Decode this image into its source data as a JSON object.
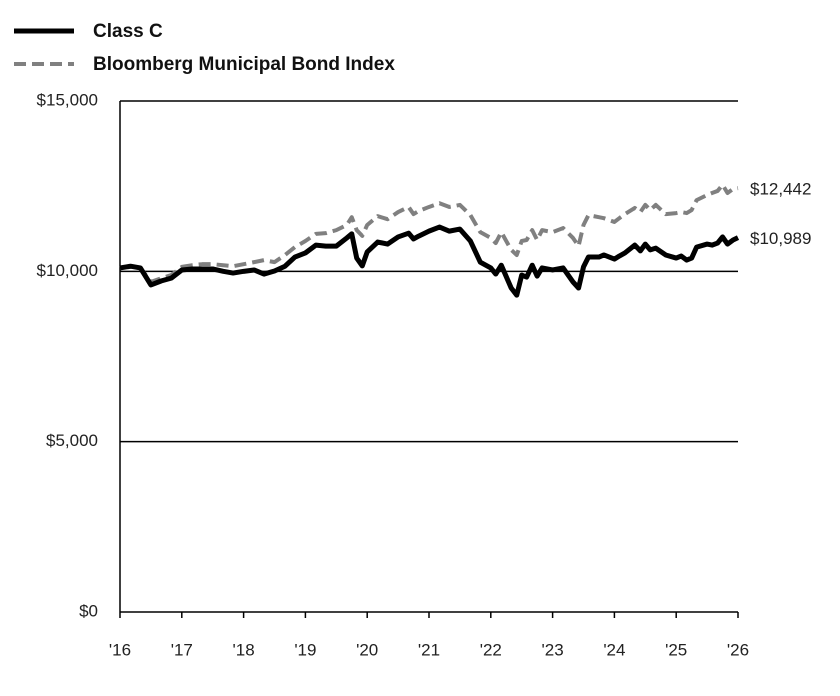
{
  "chart_data": {
    "type": "line",
    "x": [
      2016,
      2016.17,
      2016.33,
      2016.5,
      2016.67,
      2016.83,
      2017,
      2017.17,
      2017.33,
      2017.5,
      2017.67,
      2017.83,
      2018,
      2018.17,
      2018.33,
      2018.5,
      2018.67,
      2018.83,
      2019,
      2019.17,
      2019.33,
      2019.5,
      2019.67,
      2019.75,
      2019.83,
      2019.92,
      2020,
      2020.17,
      2020.33,
      2020.5,
      2020.67,
      2020.75,
      2020.83,
      2021,
      2021.17,
      2021.33,
      2021.5,
      2021.67,
      2021.83,
      2022,
      2022.08,
      2022.17,
      2022.33,
      2022.42,
      2022.5,
      2022.58,
      2022.67,
      2022.75,
      2022.83,
      2023,
      2023.17,
      2023.33,
      2023.42,
      2023.5,
      2023.58,
      2023.75,
      2023.83,
      2024,
      2024.08,
      2024.17,
      2024.33,
      2024.42,
      2024.5,
      2024.58,
      2024.67,
      2024.83,
      2025,
      2025.08,
      2025.17,
      2025.25,
      2025.33,
      2025.5,
      2025.58,
      2025.67,
      2025.75,
      2025.83,
      2025.92,
      2026
    ],
    "series": [
      {
        "name": "Class C",
        "color": "#000000",
        "dashed": false,
        "end_label": "$10,989",
        "values": [
          10100,
          10150,
          10100,
          9600,
          9720,
          9800,
          10040,
          10070,
          10070,
          10070,
          10000,
          9950,
          10000,
          10040,
          9920,
          10010,
          10150,
          10420,
          10540,
          10770,
          10740,
          10740,
          10980,
          11100,
          10390,
          10160,
          10570,
          10860,
          10800,
          11010,
          11120,
          10950,
          11030,
          11180,
          11300,
          11180,
          11240,
          10890,
          10270,
          10100,
          9920,
          10180,
          9510,
          9300,
          9890,
          9830,
          10180,
          9860,
          10100,
          10040,
          10100,
          9690,
          9510,
          10130,
          10420,
          10420,
          10480,
          10360,
          10450,
          10540,
          10770,
          10600,
          10800,
          10630,
          10680,
          10480,
          10390,
          10450,
          10330,
          10390,
          10710,
          10800,
          10770,
          10830,
          11010,
          10800,
          10920,
          10989
        ]
      },
      {
        "name": "Bloomberg Municipal Bond Index",
        "color": "#808080",
        "dashed": true,
        "end_label": "$12,442",
        "values": [
          10100,
          10150,
          10100,
          9690,
          9800,
          9890,
          10130,
          10180,
          10210,
          10210,
          10180,
          10150,
          10210,
          10270,
          10330,
          10270,
          10480,
          10710,
          10890,
          11100,
          11120,
          11210,
          11360,
          11590,
          11210,
          11040,
          11360,
          11620,
          11530,
          11740,
          11890,
          11680,
          11770,
          11890,
          12000,
          11890,
          11950,
          11650,
          11150,
          10980,
          10830,
          11150,
          10630,
          10480,
          10890,
          10920,
          11210,
          10920,
          11210,
          11150,
          11270,
          10980,
          10740,
          11360,
          11650,
          11590,
          11560,
          11450,
          11560,
          11680,
          11860,
          11740,
          11950,
          11800,
          11950,
          11680,
          11710,
          11740,
          11710,
          11800,
          12090,
          12240,
          12300,
          12360,
          12540,
          12300,
          12420,
          12442
        ]
      }
    ],
    "xlim": [
      2016,
      2026
    ],
    "xticks": [
      {
        "value": 2016,
        "label": "'16"
      },
      {
        "value": 2017,
        "label": "'17"
      },
      {
        "value": 2018,
        "label": "'18"
      },
      {
        "value": 2019,
        "label": "'19"
      },
      {
        "value": 2020,
        "label": "'20"
      },
      {
        "value": 2021,
        "label": "'21"
      },
      {
        "value": 2022,
        "label": "'22"
      },
      {
        "value": 2023,
        "label": "'23"
      },
      {
        "value": 2024,
        "label": "'24"
      },
      {
        "value": 2025,
        "label": "'25"
      },
      {
        "value": 2026,
        "label": "'26"
      }
    ],
    "ylim": [
      0,
      15000
    ],
    "yticks": [
      {
        "value": 0,
        "label": "$0"
      },
      {
        "value": 5000,
        "label": "$5,000"
      },
      {
        "value": 10000,
        "label": "$10,000"
      },
      {
        "value": 15000,
        "label": "$15,000"
      }
    ],
    "grid": true,
    "legend": "top-left"
  }
}
